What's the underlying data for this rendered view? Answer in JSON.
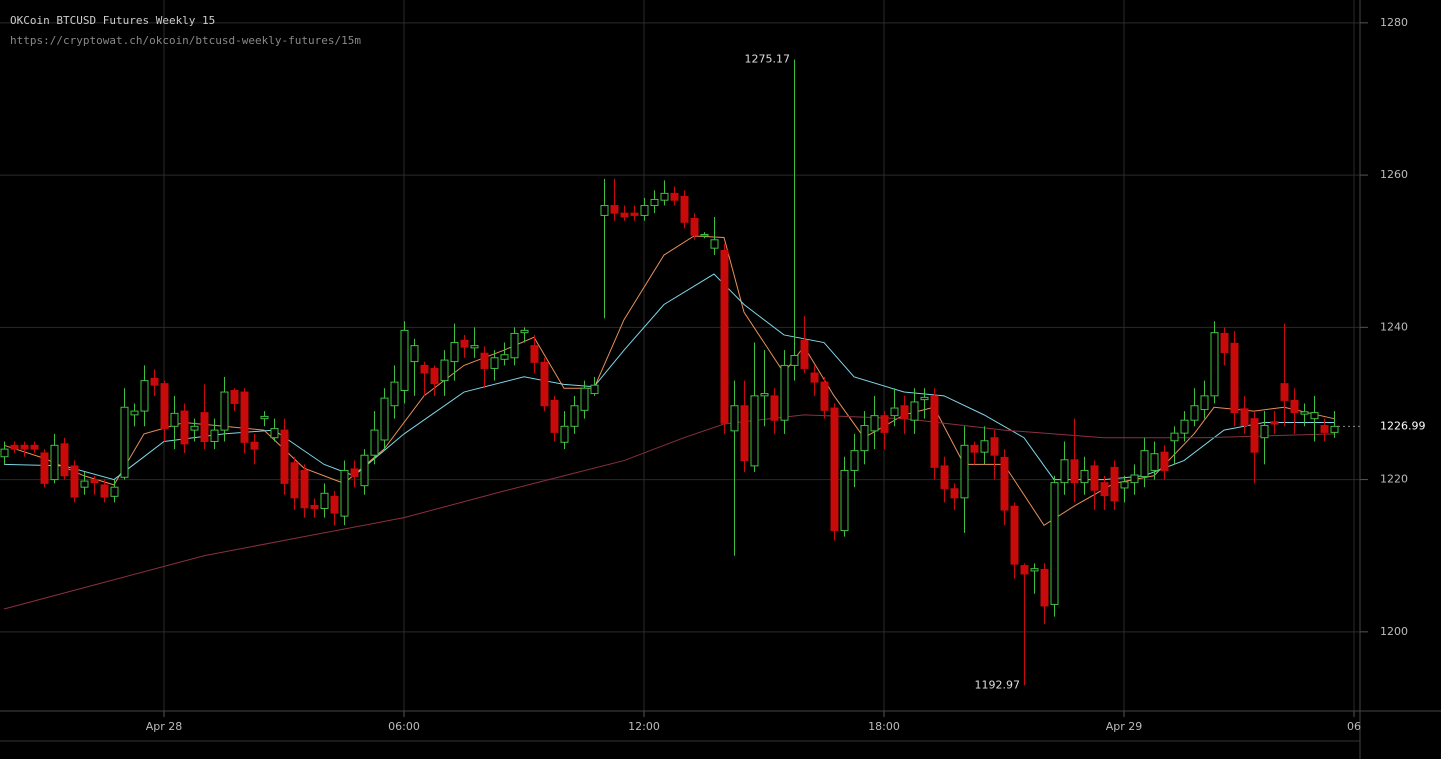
{
  "chart_data": {
    "type": "candlestick",
    "title": "OKCoin BTCUSD Futures Weekly 15",
    "subtitle": "https://cryptowat.ch/okcoin/btcusd-weekly-futures/15m",
    "categories": [
      null,
      null,
      null,
      null,
      null,
      null,
      null,
      null,
      null,
      null,
      null,
      null,
      null,
      null,
      null,
      null,
      "Apr 28",
      null,
      null,
      null,
      null,
      null,
      null,
      null,
      null,
      null,
      null,
      null,
      null,
      null,
      null,
      null,
      null,
      null,
      null,
      null,
      null,
      null,
      null,
      null,
      "06:00",
      null,
      null,
      null,
      null,
      null,
      null,
      null,
      null,
      null,
      null,
      null,
      null,
      null,
      null,
      null,
      null,
      null,
      null,
      null,
      null,
      null,
      null,
      null,
      "12:00",
      null,
      null,
      null,
      null,
      null,
      null,
      null,
      null,
      null,
      null,
      null,
      null,
      null,
      null,
      null,
      null,
      null,
      null,
      null,
      null,
      null,
      null,
      null,
      "18:00",
      null,
      null,
      null,
      null,
      null,
      null,
      null,
      null,
      null,
      null,
      null,
      null,
      null,
      null,
      null,
      null,
      null,
      null,
      null,
      null,
      null,
      null,
      null,
      "Apr 29",
      null,
      null,
      null,
      null,
      null,
      null,
      null,
      null,
      null,
      null,
      null,
      null,
      null,
      null,
      null,
      null,
      null,
      null,
      null,
      null,
      null,
      null,
      "06"
    ],
    "open": [
      1223,
      1224.5,
      1224.5,
      1224.5,
      1223.5,
      1220,
      1224.7,
      1221.8,
      1219,
      1220,
      1219.3,
      1217.8,
      1220.3,
      1228.5,
      1229,
      1233.3,
      1232.6,
      1227,
      1229,
      1226.5,
      1228.8,
      1225,
      1226.5,
      1231.7,
      1231.5,
      1224.9,
      1228,
      1225.5,
      1226.5,
      1222.2,
      1221.2,
      1216.6,
      1216.2,
      1217.8,
      1215.2,
      1221.4,
      1219.2,
      1223.2,
      1225.2,
      1229.7,
      1231.7,
      1235.5,
      1235,
      1234.6,
      1233,
      1235.5,
      1238.3,
      1237.3,
      1236.6,
      1234.6,
      1235.8,
      1236,
      1239.3,
      1237.6,
      1235.4,
      1230.4,
      1224.9,
      1227,
      1229.1,
      1231.3,
      1254.7,
      1256,
      1255,
      1255,
      1254.7,
      1256,
      1256.7,
      1257.6,
      1257.2,
      1254.3,
      1252,
      1250.4,
      1250.1,
      1226.4,
      1229.7,
      1221.8,
      1231,
      1231,
      1227.8,
      1235,
      1238.3,
      1234,
      1232.8,
      1229.4,
      1213.3,
      1221.2,
      1223.8,
      1226.4,
      1228.4,
      1228.4,
      1229.7,
      1227.8,
      1230.5,
      1231,
      1221.8,
      1218.8,
      1217.6,
      1224.5,
      1223.6,
      1225.5,
      1222.9,
      1216.5,
      1208.7,
      1208,
      1208.2,
      1203.6,
      1219.6,
      1222.6,
      1219.6,
      1221.8,
      1219.6,
      1221.6,
      1218.9,
      1219.6,
      1220.4,
      1221.2,
      1223.6,
      1225.1,
      1226.1,
      1227.8,
      1229.2,
      1231,
      1239.2,
      1237.9,
      1229.3,
      1228,
      1225.5,
      1227.6,
      1232.6,
      1230.4,
      1228.6,
      1228,
      1227.1,
      1226.2,
      null,
      null
    ],
    "high": [
      1225,
      1225,
      1225,
      1225,
      1224,
      1226,
      1225.5,
      1222.5,
      1221,
      1220.5,
      1220,
      1220,
      1232,
      1230,
      1235,
      1234.5,
      1233,
      1231,
      1230,
      1228,
      1232.5,
      1228,
      1233.5,
      1232,
      1232,
      1226,
      1229,
      1228,
      1228,
      1223,
      1222,
      1217.5,
      1219.5,
      1218.5,
      1222.5,
      1222.5,
      1224,
      1229,
      1232,
      1235,
      1240.8,
      1238.5,
      1235.5,
      1235,
      1237,
      1240.5,
      1239,
      1240,
      1237.5,
      1237,
      1238,
      1240,
      1240,
      1239,
      1236,
      1231,
      1229,
      1231,
      1233,
      1233.5,
      1259.5,
      1259.5,
      1256,
      1256,
      1257,
      1258,
      1259.3,
      1258.5,
      1258,
      1255,
      1252.5,
      1254.5,
      1251,
      1233,
      1233,
      1238,
      1237,
      1232,
      1237,
      1275.17,
      1241.5,
      1235,
      1233.5,
      1230,
      1223,
      1226,
      1229,
      1231,
      1229,
      1232,
      1231,
      1232,
      1232,
      1232,
      1223,
      1219.5,
      1227,
      1225,
      1227,
      1226.5,
      1224,
      1217,
      1209,
      1209,
      1209,
      1220.5,
      1225,
      1228,
      1223,
      1222.5,
      1220.5,
      1222.5,
      1220.5,
      1222,
      1225.5,
      1225,
      1224.5,
      1227,
      1229,
      1232,
      1233,
      1240.8,
      1240,
      1239.5,
      1231,
      1229,
      1229,
      1229,
      1240.5,
      1232,
      1230,
      1231,
      1228,
      1229,
      null,
      null
    ],
    "low": [
      1222,
      1223.5,
      1223,
      1223.5,
      1219,
      1219.5,
      1220,
      1217,
      1218,
      1218,
      1217,
      1217,
      1220,
      1227,
      1227,
      1231,
      1225,
      1224,
      1223.5,
      1225,
      1224,
      1224,
      1225,
      1229,
      1223.5,
      1222,
      1227,
      1225,
      1218,
      1216,
      1215,
      1215,
      1215,
      1214,
      1214,
      1219,
      1218,
      1222,
      1224,
      1228,
      1230,
      1231,
      1231,
      1231,
      1231,
      1233,
      1236,
      1236,
      1232,
      1233,
      1235,
      1235,
      1238,
      1234,
      1229,
      1225,
      1224,
      1226,
      1228,
      1231,
      1241.2,
      1254,
      1254,
      1254,
      1254,
      1255,
      1256,
      1256,
      1253,
      1251.5,
      1251.7,
      1249.5,
      1226,
      1210,
      1221,
      1221,
      1227,
      1226,
      1226,
      1233,
      1234,
      1231,
      1228,
      1212,
      1212.5,
      1219,
      1222,
      1224,
      1224,
      1227,
      1226,
      1226,
      1228,
      1220,
      1217,
      1216,
      1213,
      1222,
      1222,
      1220,
      1214,
      1207,
      1192.97,
      1205,
      1201,
      1202,
      1218,
      1217,
      1218,
      1216,
      1216,
      1216,
      1217,
      1218,
      1219,
      1220,
      1220,
      1222,
      1225,
      1227,
      1228,
      1230,
      1235,
      1227,
      1226,
      1219.5,
      1222,
      1226,
      1227,
      1226,
      1227,
      1225,
      1225,
      1225.5,
      null,
      null
    ],
    "close": [
      1224,
      1224,
      1224,
      1224,
      1219.5,
      1224.5,
      1220.5,
      1217.7,
      1219.8,
      1219.6,
      1217.7,
      1219,
      1229.5,
      1229,
      1233,
      1232.4,
      1226.7,
      1228.7,
      1224.7,
      1227,
      1225,
      1226.5,
      1231.5,
      1230,
      1224.9,
      1224,
      1228.3,
      1226.7,
      1219.5,
      1217.6,
      1216.3,
      1216.2,
      1218.2,
      1215.6,
      1221.2,
      1220.4,
      1223.2,
      1226.5,
      1230.7,
      1232.8,
      1239.6,
      1237.6,
      1234,
      1232.6,
      1235.7,
      1238,
      1237.4,
      1237.6,
      1234.6,
      1236,
      1236.4,
      1239.2,
      1239.6,
      1235.4,
      1229.7,
      1226.2,
      1227,
      1229.7,
      1232,
      1232.4,
      1256,
      1255,
      1254.5,
      1254.7,
      1256,
      1256.8,
      1257.6,
      1256.7,
      1253.8,
      1252.1,
      1252.2,
      1251.5,
      1227.4,
      1229.7,
      1222.5,
      1231,
      1231.3,
      1227.8,
      1235,
      1236.3,
      1234.6,
      1232.8,
      1229.1,
      1213.3,
      1221.2,
      1223.8,
      1227.1,
      1228.4,
      1226.2,
      1229.4,
      1228,
      1230.2,
      1230.8,
      1221.6,
      1218.8,
      1217.6,
      1224.5,
      1223.6,
      1225.1,
      1223.2,
      1216,
      1208.9,
      1207.6,
      1208.3,
      1203.4,
      1219.6,
      1222.6,
      1219.6,
      1221.2,
      1218.6,
      1217.9,
      1217.2,
      1219.7,
      1220.6,
      1223.8,
      1223.4,
      1221.2,
      1226.1,
      1227.8,
      1229.7,
      1231,
      1239.3,
      1236.7,
      1228.8,
      1227.1,
      1223.6,
      1227.1,
      1227.3,
      1230.4,
      1228.8,
      1228.9,
      1228.8,
      1226.2,
      1226.99,
      null,
      null
    ],
    "up_color": "#3fc13f",
    "down_color": "#c80a0a",
    "lines": [
      {
        "color": "#e8905a",
        "x": [
          0,
          4,
          8,
          11,
          14,
          18,
          22,
          26,
          30,
          34,
          38,
          42,
          46,
          50,
          53,
          56,
          59,
          62,
          66,
          69,
          72,
          74,
          78,
          80,
          83,
          86,
          90,
          93,
          96,
          100,
          104,
          107,
          111,
          115,
          119,
          121,
          125,
          128,
          133
        ],
        "values": [
          1224.5,
          1222.8,
          1220.5,
          1219.3,
          1226,
          1227.5,
          1227,
          1226.5,
          1221.5,
          1219.5,
          1224,
          1231,
          1235,
          1237,
          1238.7,
          1232,
          1232,
          1241,
          1249.5,
          1252,
          1251.8,
          1242,
          1234,
          1237.5,
          1231,
          1225.5,
          1228.5,
          1229.5,
          1222,
          1222,
          1214,
          1216.5,
          1219.5,
          1220.5,
          1226,
          1229.5,
          1229,
          1229.5,
          1228
        ]
      },
      {
        "color": "#7fd6e6",
        "x": [
          0,
          6,
          11,
          16,
          22,
          27,
          32,
          35,
          40,
          46,
          52,
          56,
          59,
          62,
          66,
          71,
          74,
          78,
          82,
          85,
          90,
          94,
          98,
          102,
          105,
          110,
          114,
          118,
          122,
          126,
          133
        ],
        "values": [
          1222,
          1221.8,
          1220,
          1225,
          1226,
          1226.5,
          1222,
          1220.5,
          1226,
          1231.5,
          1233.5,
          1232.5,
          1232.2,
          1237,
          1243,
          1247,
          1243,
          1239,
          1238,
          1233.5,
          1231.5,
          1231,
          1228.5,
          1225.5,
          1220,
          1220,
          1220.5,
          1222.5,
          1226.5,
          1227.5,
          1227.5
        ]
      },
      {
        "color": "#8a3040",
        "x": [
          0,
          10,
          20,
          30,
          40,
          50,
          56,
          62,
          68,
          72,
          80,
          90,
          100,
          110,
          120,
          133
        ],
        "values": [
          1203,
          1206.5,
          1210,
          1212.5,
          1215,
          1218.5,
          1220.5,
          1222.5,
          1225.5,
          1227.3,
          1228.5,
          1228,
          1226.5,
          1225.5,
          1225.5,
          1226
        ]
      }
    ],
    "ylim": [
      1189.6,
      1283.0
    ],
    "yticks": [
      1200,
      1220,
      1240,
      1260,
      1280
    ],
    "grid": true
  }
}
